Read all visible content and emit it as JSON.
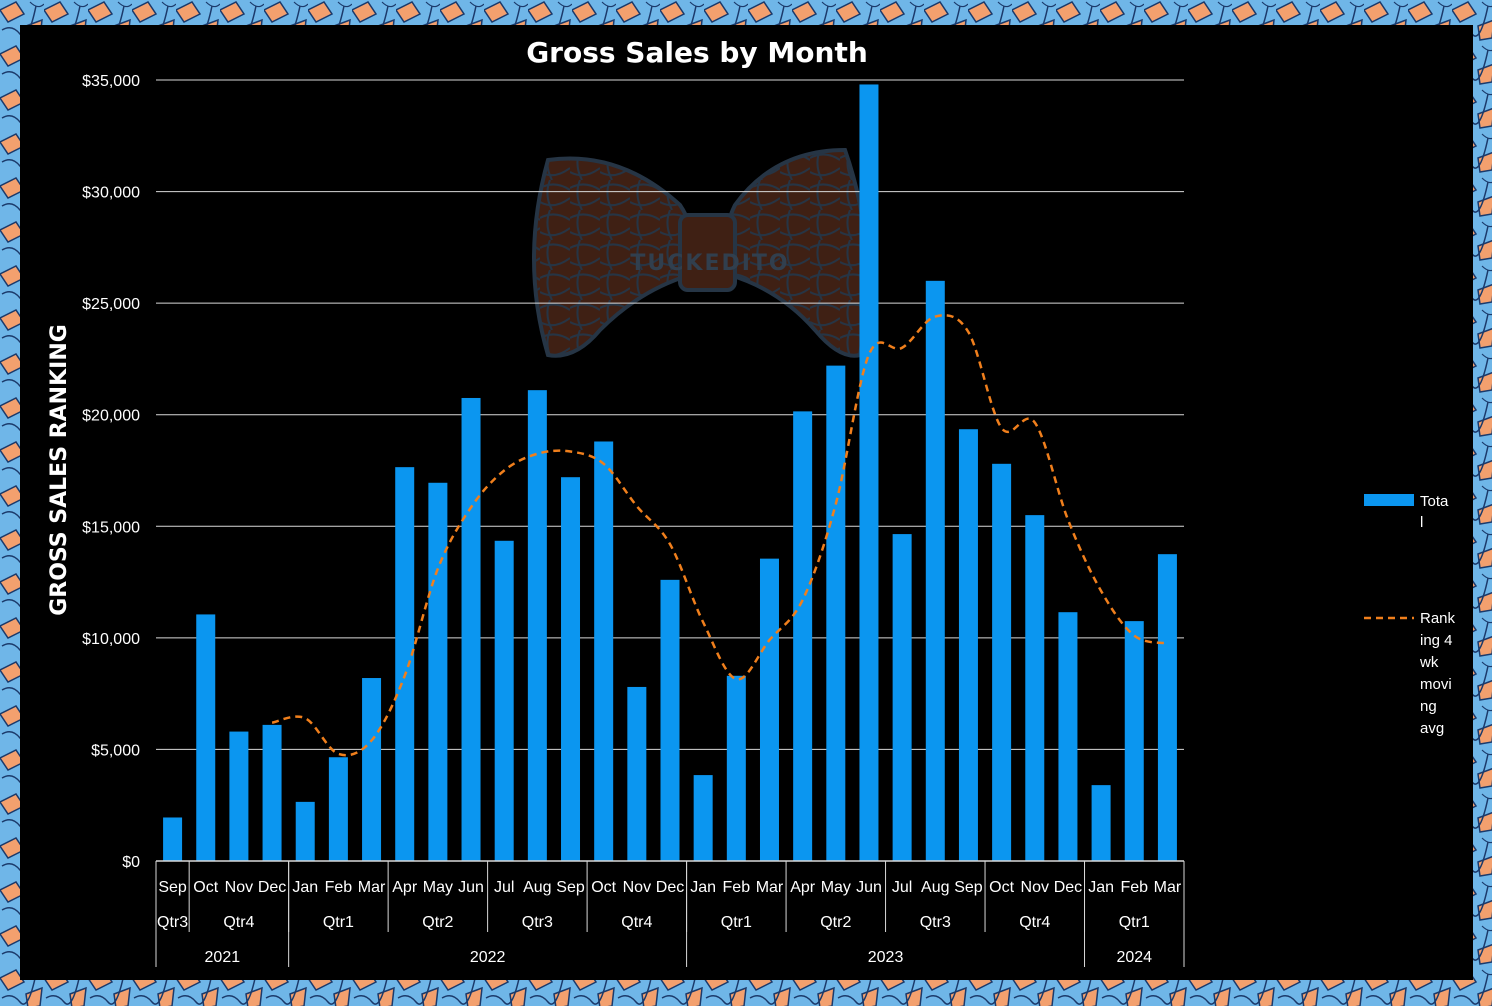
{
  "colors": {
    "background": "#000000",
    "bar": "#0b96f0",
    "line": "#f07f1c",
    "grid": "#d9d9d9",
    "text": "#ffffff",
    "border_light": "#6fb6e8",
    "border_accent": "#f3a06e"
  },
  "watermark": {
    "text": "TUCKEDITO"
  },
  "chart_data": {
    "type": "bar",
    "title": "Gross Sales by Month",
    "ylabel": "GROSS SALES RANKING",
    "xlabel": "",
    "ylim": [
      0,
      35000
    ],
    "yticks": [
      "$0",
      "$5,000",
      "$10,000",
      "$15,000",
      "$20,000",
      "$25,000",
      "$30,000",
      "$35,000"
    ],
    "ytick_values": [
      0,
      5000,
      10000,
      15000,
      20000,
      25000,
      30000,
      35000
    ],
    "grid": true,
    "legend_position": "right",
    "categories": [
      "Sep",
      "Oct",
      "Nov",
      "Dec",
      "Jan",
      "Feb",
      "Mar",
      "Apr",
      "May",
      "Jun",
      "Jul",
      "Aug",
      "Sep",
      "Oct",
      "Nov",
      "Dec",
      "Jan",
      "Feb",
      "Mar",
      "Apr",
      "May",
      "Jun",
      "Jul",
      "Aug",
      "Sep",
      "Oct",
      "Nov",
      "Dec",
      "Jan",
      "Feb",
      "Mar"
    ],
    "quarters": [
      {
        "label": "Qtr3",
        "start": 0,
        "count": 1
      },
      {
        "label": "Qtr4",
        "start": 1,
        "count": 3
      },
      {
        "label": "Qtr1",
        "start": 4,
        "count": 3
      },
      {
        "label": "Qtr2",
        "start": 7,
        "count": 3
      },
      {
        "label": "Qtr3",
        "start": 10,
        "count": 3
      },
      {
        "label": "Qtr4",
        "start": 13,
        "count": 3
      },
      {
        "label": "Qtr1",
        "start": 16,
        "count": 3
      },
      {
        "label": "Qtr2",
        "start": 19,
        "count": 3
      },
      {
        "label": "Qtr3",
        "start": 22,
        "count": 3
      },
      {
        "label": "Qtr4",
        "start": 25,
        "count": 3
      },
      {
        "label": "Qtr1",
        "start": 28,
        "count": 3
      }
    ],
    "years": [
      {
        "label": "2021",
        "start": 0,
        "count": 4
      },
      {
        "label": "2022",
        "start": 4,
        "count": 12
      },
      {
        "label": "2023",
        "start": 16,
        "count": 12
      },
      {
        "label": "2024",
        "start": 28,
        "count": 3
      }
    ],
    "series": [
      {
        "name": "Total",
        "legend_lines": [
          "Tota",
          "l"
        ],
        "type": "bar",
        "values": [
          1950,
          11050,
          5800,
          6100,
          2650,
          4650,
          8200,
          17650,
          16950,
          20750,
          14350,
          21100,
          17200,
          18800,
          7800,
          12600,
          3850,
          8300,
          13550,
          20150,
          22200,
          34800,
          14650,
          26000,
          19350,
          17800,
          15500,
          11150,
          3400,
          10750,
          13750
        ]
      },
      {
        "name": "Ranking 4 wk moving avg",
        "legend_lines": [
          "Rank",
          "ing 4",
          "wk",
          "movi",
          "ng",
          "avg"
        ],
        "type": "line",
        "style": "dashed",
        "values": [
          null,
          null,
          null,
          6200,
          6400,
          4800,
          5400,
          8300,
          13100,
          15850,
          17500,
          18250,
          18350,
          17800,
          15900,
          14200,
          10700,
          8150,
          9900,
          11700,
          16000,
          22700,
          23000,
          24400,
          23700,
          19400,
          19650,
          15300,
          12100,
          10100,
          9750
        ]
      }
    ]
  }
}
